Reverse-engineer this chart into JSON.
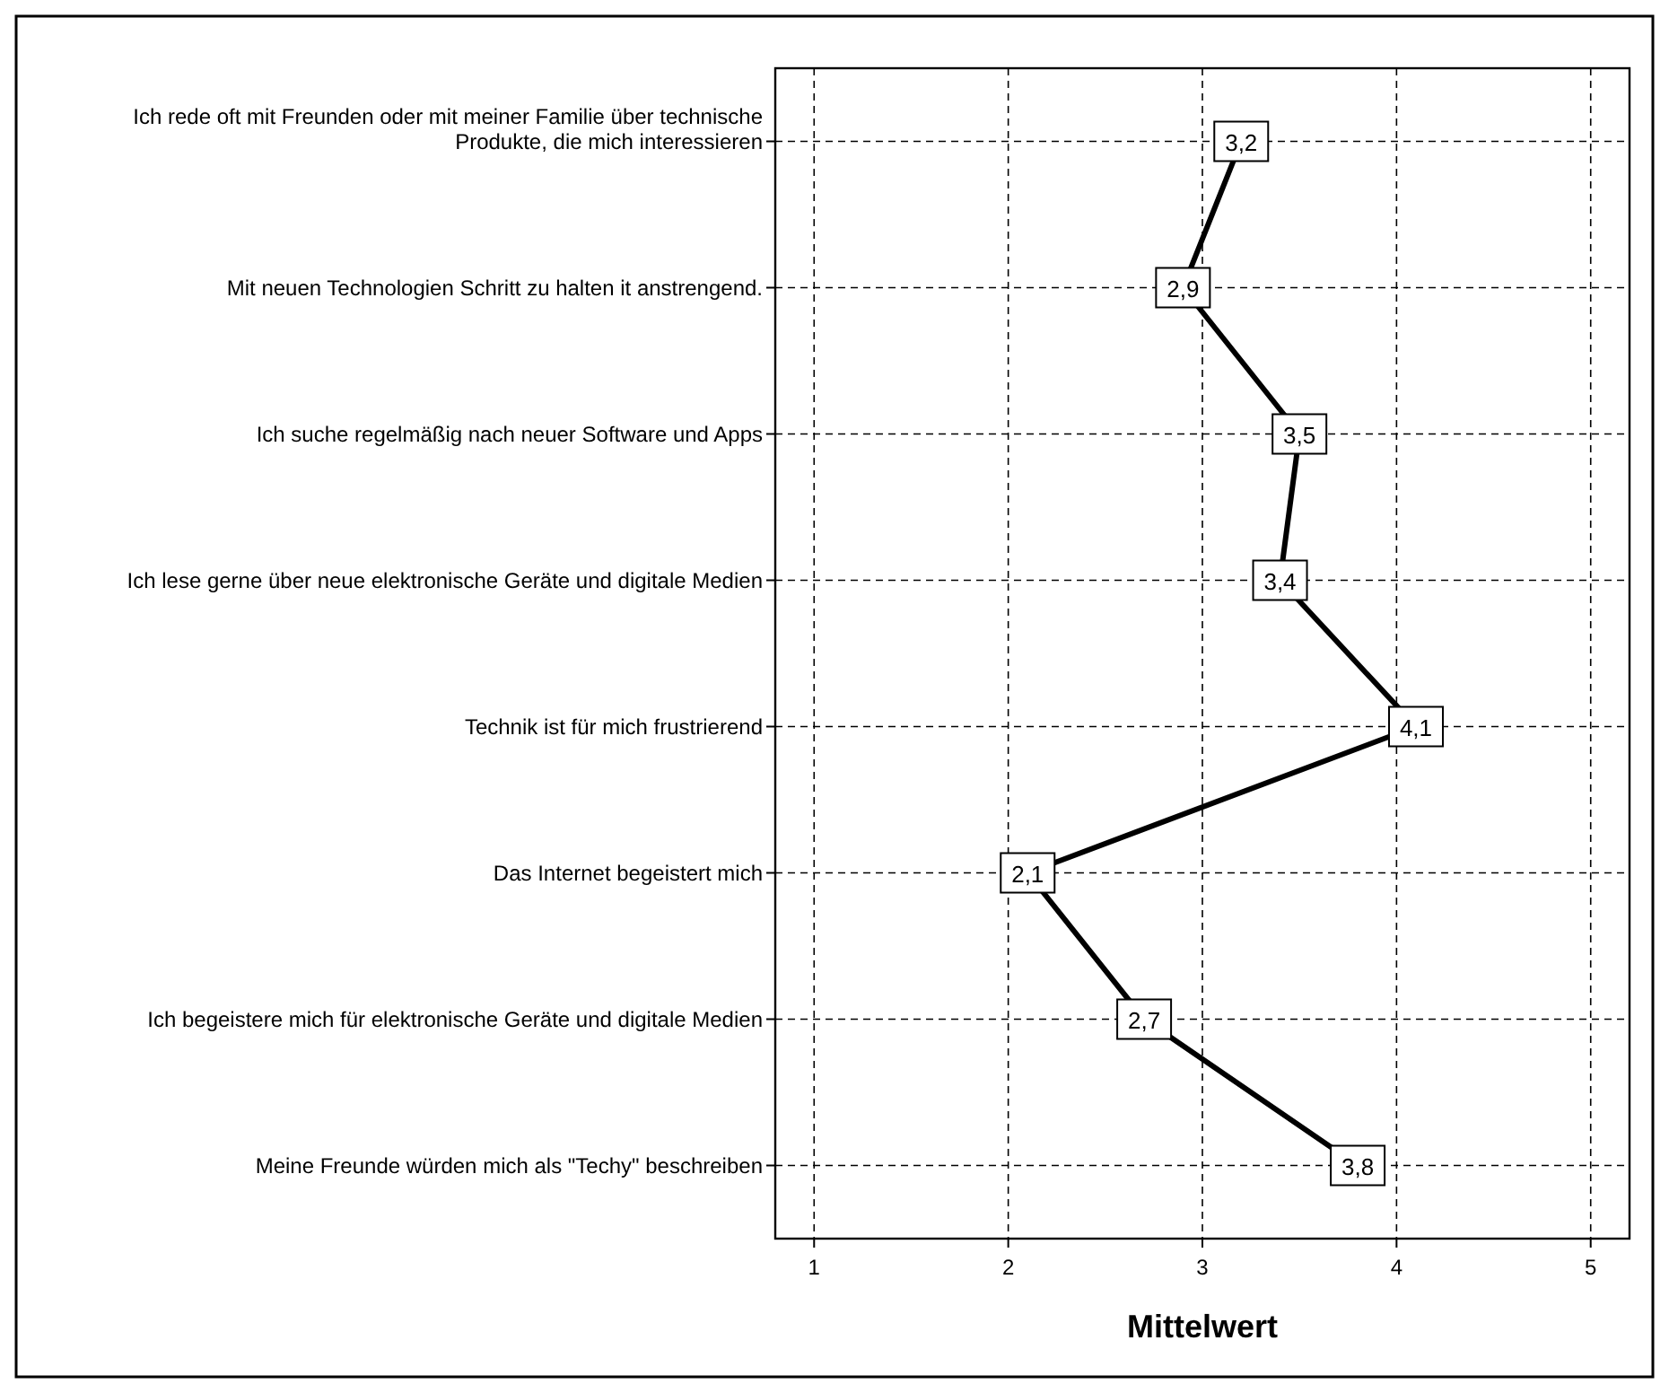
{
  "chart_data": {
    "type": "line",
    "orientation": "horizontal",
    "xlabel": "Mittelwert",
    "categories": [
      "Ich rede oft mit Freunden oder mit meiner Familie über technische Produkte, die mich interessieren",
      "Mit neuen Technologien Schritt zu halten it anstrengend.",
      "Ich suche regelmäßig nach neuer Software und Apps",
      "Ich lese gerne über neue elektronische Geräte und digitale Medien",
      "Technik ist für mich frustrierend",
      "Das Internet begeistert mich",
      "Ich begeistere mich für elektronische Geräte und digitale Medien",
      "Meine Freunde würden mich als \"Techy\" beschreiben"
    ],
    "series": [
      {
        "color": "#000000",
        "values": [
          3.2,
          2.9,
          3.5,
          3.4,
          4.1,
          2.1,
          2.7,
          3.8
        ],
        "value_labels": [
          "3,2",
          "2,9",
          "3,5",
          "3,4",
          "4,1",
          "2,1",
          "2,7",
          "3,8"
        ]
      }
    ],
    "xlim": [
      0.8,
      5.2
    ],
    "xticks": [
      1,
      2,
      3,
      4,
      5
    ],
    "grid": true,
    "marker": "square",
    "line_style": "solid"
  }
}
